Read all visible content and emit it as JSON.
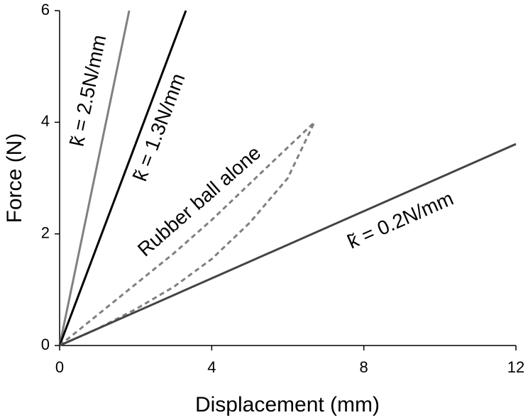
{
  "chart_data": {
    "type": "line",
    "x_label": "Displacement (mm)",
    "y_label": "Force (N)",
    "xlim": [
      0,
      12
    ],
    "ylim": [
      0,
      6
    ],
    "xticks": [
      0,
      4,
      8,
      12
    ],
    "yticks": [
      0,
      2,
      4,
      6
    ],
    "series": [
      {
        "name": "k̃ = 2.5N/mm",
        "color": "#808080",
        "dashed": false,
        "x": [
          0,
          1.83
        ],
        "values": [
          0,
          6
        ]
      },
      {
        "name": "k̃ = 1.3N/mm",
        "color": "#000000",
        "dashed": false,
        "x": [
          0,
          3.32
        ],
        "values": [
          0,
          6
        ]
      },
      {
        "name": "Rubber ball alone",
        "color": "#808080",
        "dashed": true,
        "x": [
          0,
          1,
          2,
          3,
          4,
          5,
          6,
          6.7,
          6,
          5,
          4,
          3,
          2,
          1,
          0
        ],
        "values": [
          0,
          0.55,
          1.1,
          1.65,
          2.25,
          2.9,
          3.55,
          4.0,
          3.0,
          2.2,
          1.55,
          1.05,
          0.65,
          0.3,
          0
        ]
      },
      {
        "name": "k̃ = 0.2N/mm",
        "color": "#444444",
        "dashed": false,
        "x": [
          0,
          12
        ],
        "values": [
          0,
          3.61
        ]
      }
    ]
  }
}
